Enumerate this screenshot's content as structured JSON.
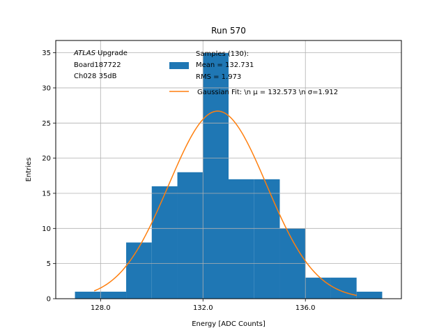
{
  "chart_data": {
    "type": "bar",
    "title": "Run 570",
    "xlabel": "Energy [ADC Counts]",
    "ylabel": "Entries",
    "xlim": [
      126.25,
      139.75
    ],
    "ylim": [
      0,
      36.75
    ],
    "xticks": [
      128.0,
      132.0,
      136.0
    ],
    "xtick_labels": [
      "128.0",
      "132.0",
      "136.0"
    ],
    "yticks": [
      0,
      5,
      10,
      15,
      20,
      25,
      30,
      35
    ],
    "ytick_labels": [
      "0",
      "5",
      "10",
      "15",
      "20",
      "25",
      "30",
      "35"
    ],
    "grid": true,
    "bar_color": "#1f77b4",
    "fit_color": "#ff7f0e",
    "bins": [
      {
        "left": 127.0,
        "right": 128.0,
        "value": 1
      },
      {
        "left": 128.0,
        "right": 129.0,
        "value": 1
      },
      {
        "left": 129.0,
        "right": 130.0,
        "value": 8
      },
      {
        "left": 130.0,
        "right": 131.0,
        "value": 16
      },
      {
        "left": 131.0,
        "right": 132.0,
        "value": 18
      },
      {
        "left": 132.0,
        "right": 133.0,
        "value": 35
      },
      {
        "left": 133.0,
        "right": 134.0,
        "value": 17
      },
      {
        "left": 134.0,
        "right": 135.0,
        "value": 17
      },
      {
        "left": 135.0,
        "right": 136.0,
        "value": 10
      },
      {
        "left": 136.0,
        "right": 137.0,
        "value": 3
      },
      {
        "left": 137.0,
        "right": 138.0,
        "value": 3
      },
      {
        "left": 138.0,
        "right": 139.0,
        "value": 1
      }
    ],
    "fit": {
      "amplitude": 26.7,
      "mu": 132.573,
      "sigma": 1.912,
      "x_range": [
        127.75,
        138.0
      ]
    },
    "legend": {
      "position": "top-right",
      "samples_lines": [
        "Samples (130):",
        " Mean = 132.731",
        " RMS = 1.973"
      ],
      "fit_label": "Gaussian Fit: \\n μ = 132.573 \\n σ=1.912"
    },
    "annotation": {
      "atlas": "ATLAS",
      "upgrade": " Upgrade",
      "line2": " Board187722",
      "line3": " Ch028 35dB"
    }
  }
}
